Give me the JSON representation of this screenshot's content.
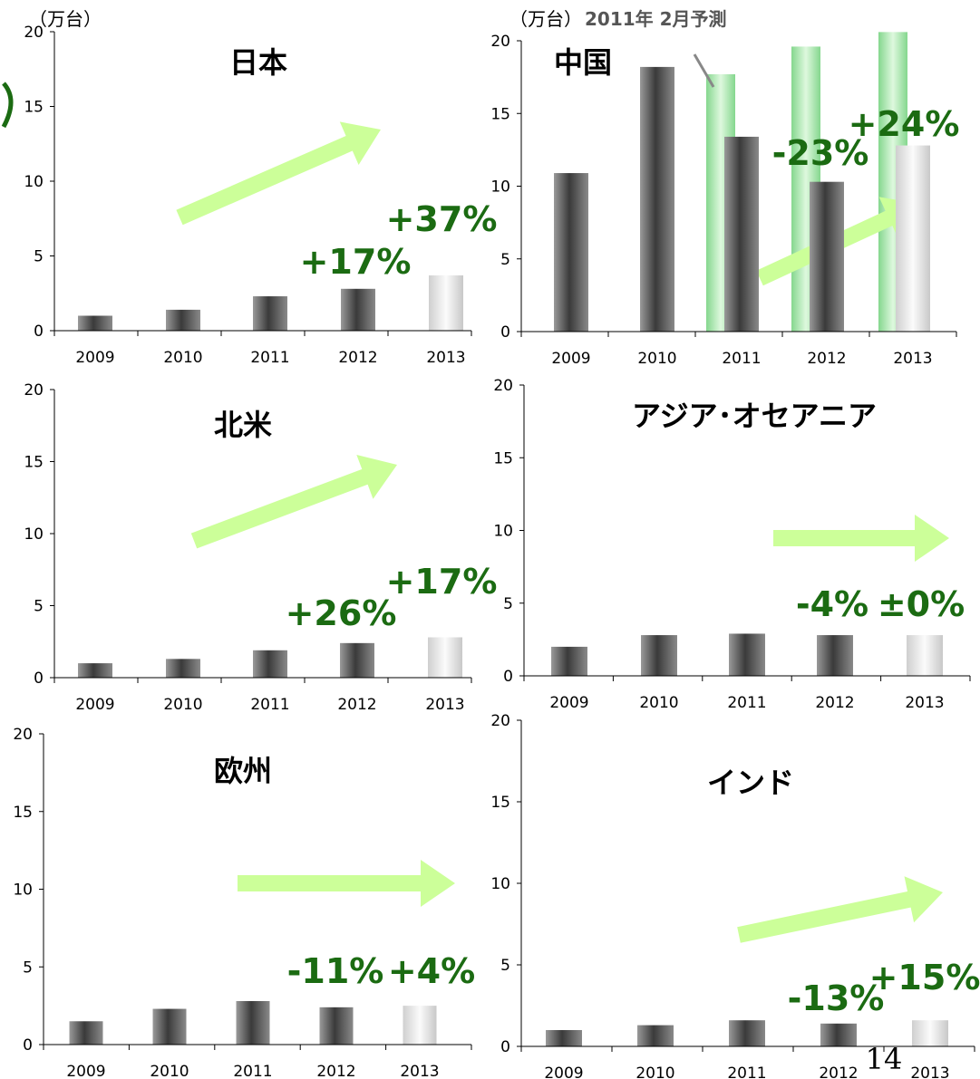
{
  "page_number": "14",
  "colors": {
    "arrow": "#ccff99",
    "pct": "#1b6b12",
    "forecast": "#a8eeb0",
    "bar_dark": "#3a3a3a",
    "bar_light": "#f0f0f0"
  },
  "chart_data": [
    {
      "type": "bar",
      "title": "日本",
      "unit": "（万台）",
      "categories": [
        "2009",
        "2010",
        "2011",
        "2012",
        "2013"
      ],
      "values": [
        1.0,
        1.4,
        2.3,
        2.8,
        3.7
      ],
      "ylim": [
        0,
        20
      ],
      "yticks": [
        0,
        5,
        10,
        15,
        20
      ],
      "annotations": [
        "+17%",
        "+37%"
      ],
      "trend_arrow": "up"
    },
    {
      "type": "bar",
      "title": "中国",
      "unit": "（万台）",
      "forecast_label": "2011年 2月予測",
      "categories": [
        "2009",
        "2010",
        "2011",
        "2012",
        "2013"
      ],
      "values": [
        10.9,
        18.2,
        13.4,
        10.3,
        12.8
      ],
      "forecast_values": [
        null,
        null,
        17.7,
        19.6,
        20.6
      ],
      "ylim": [
        0,
        20
      ],
      "yticks": [
        0,
        5,
        10,
        15,
        20
      ],
      "annotations": [
        "-23%",
        "+24%"
      ],
      "trend_arrow": "up"
    },
    {
      "type": "bar",
      "title": "北米",
      "categories": [
        "2009",
        "2010",
        "2011",
        "2012",
        "2013"
      ],
      "values": [
        1.0,
        1.3,
        1.9,
        2.4,
        2.8
      ],
      "ylim": [
        0,
        20
      ],
      "yticks": [
        0,
        5,
        10,
        15,
        20
      ],
      "annotations": [
        "+26%",
        "+17%"
      ],
      "trend_arrow": "up"
    },
    {
      "type": "bar",
      "title": "アジア･オセアニア",
      "categories": [
        "2009",
        "2010",
        "2011",
        "2012",
        "2013"
      ],
      "values": [
        2.0,
        2.8,
        2.9,
        2.8,
        2.8
      ],
      "ylim": [
        0,
        20
      ],
      "yticks": [
        0,
        5,
        10,
        15,
        20
      ],
      "annotations": [
        "-4%",
        "±0%"
      ],
      "trend_arrow": "flat"
    },
    {
      "type": "bar",
      "title": "欧州",
      "categories": [
        "2009",
        "2010",
        "2011",
        "2012",
        "2013"
      ],
      "values": [
        1.5,
        2.3,
        2.8,
        2.4,
        2.5
      ],
      "ylim": [
        0,
        20
      ],
      "yticks": [
        0,
        5,
        10,
        15,
        20
      ],
      "annotations": [
        "-11%",
        "+4%"
      ],
      "trend_arrow": "flat"
    },
    {
      "type": "bar",
      "title": "インド",
      "categories": [
        "2009",
        "2010",
        "2011",
        "2012",
        "2013"
      ],
      "values": [
        1.0,
        1.3,
        1.6,
        1.4,
        1.6
      ],
      "ylim": [
        0,
        20
      ],
      "yticks": [
        0,
        5,
        10,
        15,
        20
      ],
      "annotations": [
        "-13%",
        "+15%"
      ],
      "trend_arrow": "up"
    }
  ]
}
